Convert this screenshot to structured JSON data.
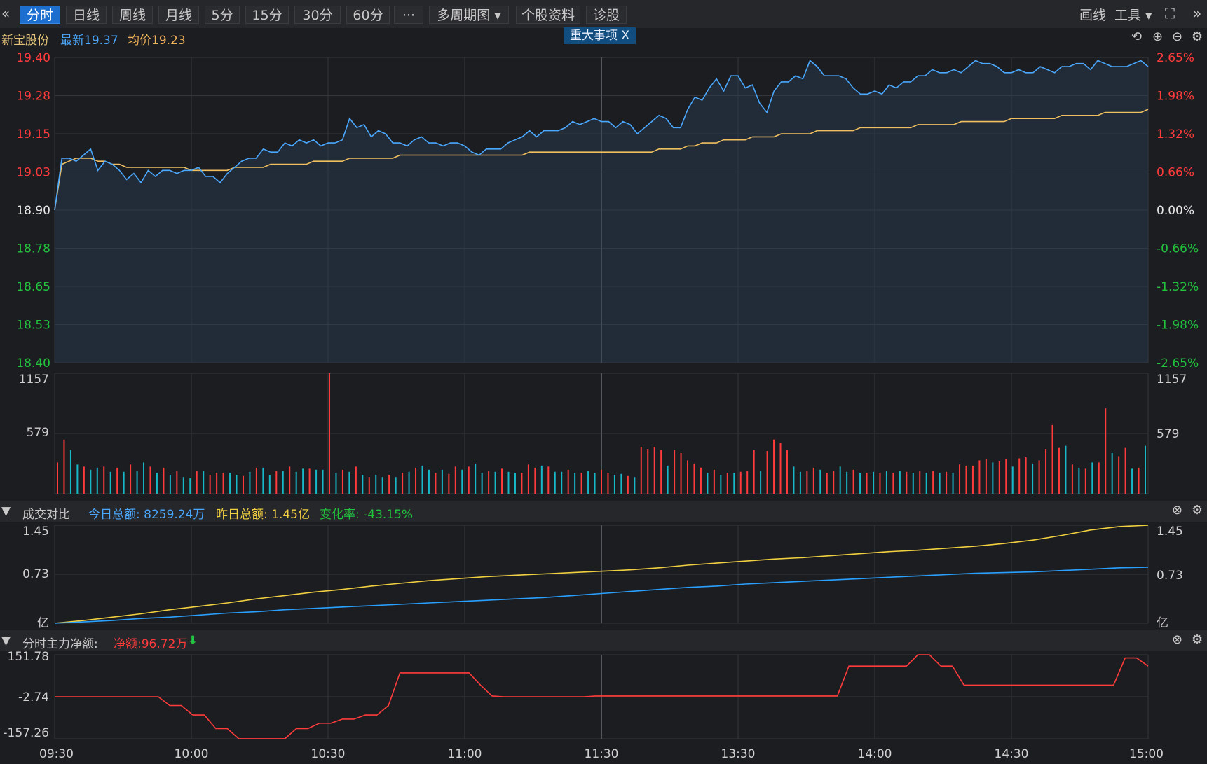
{
  "toolbar": {
    "back_icon": "«",
    "tabs": [
      {
        "label": "分时",
        "active": true
      },
      {
        "label": "日线",
        "active": false
      },
      {
        "label": "周线",
        "active": false
      },
      {
        "label": "月线",
        "active": false
      },
      {
        "label": "5分",
        "active": false
      },
      {
        "label": "15分",
        "active": false
      },
      {
        "label": "30分",
        "active": false
      },
      {
        "label": "60分",
        "active": false
      },
      {
        "label": "···",
        "active": false
      },
      {
        "label": "多周期图 ▾",
        "active": false
      },
      {
        "label": "个股资料",
        "active": false
      },
      {
        "label": "诊股",
        "active": false
      }
    ],
    "draw_label": "画线",
    "tools_label": "工具 ▾",
    "fullscreen_icon": "⛶",
    "forward_icon": "»"
  },
  "info": {
    "stock_name": "新宝股份",
    "latest": "最新19.37",
    "avg": "均价19.23",
    "event_badge": "重大事项  X"
  },
  "colors": {
    "up": "#ff3b3b",
    "down": "#22c43e",
    "price": "#4aa8ff",
    "avg": "#f0c060",
    "bg": "#1c1d21",
    "grid": "#35363b"
  },
  "time_labels": [
    "09:30",
    "10:00",
    "10:30",
    "11:00",
    "11:30",
    "13:30",
    "14:00",
    "14:30",
    "15:00"
  ],
  "chart_data": [
    {
      "type": "line",
      "ylim": [
        18.4,
        19.4
      ],
      "y_left_labels": [
        "19.40",
        "19.28",
        "19.15",
        "19.03",
        "18.90",
        "18.78",
        "18.65",
        "18.53",
        "18.40"
      ],
      "y_right_labels": [
        "2.65%",
        "1.98%",
        "1.32%",
        "0.66%",
        "0.00%",
        "-0.66%",
        "-1.32%",
        "-1.98%",
        "-2.65%"
      ],
      "prev_close": 18.9,
      "series": [
        {
          "values": [
            18.9,
            19.07,
            19.07,
            19.06,
            19.08,
            19.1,
            19.03,
            19.06,
            19.05,
            19.03,
            19.0,
            19.02,
            18.99,
            19.03,
            19.01,
            19.03,
            19.03,
            19.02,
            19.03,
            19.03,
            19.04,
            19.01,
            19.01,
            18.99,
            19.02,
            19.04,
            19.06,
            19.07,
            19.07,
            19.1,
            19.09,
            19.09,
            19.12,
            19.11,
            19.13,
            19.12,
            19.13,
            19.11,
            19.12,
            19.12,
            19.13,
            19.2,
            19.17,
            19.18,
            19.14,
            19.16,
            19.15,
            19.12,
            19.12,
            19.11,
            19.13,
            19.14,
            19.12,
            19.12,
            19.11,
            19.12,
            19.12,
            19.11,
            19.09,
            19.08,
            19.1,
            19.1,
            19.1,
            19.12,
            19.13,
            19.14,
            19.16,
            19.14,
            19.16,
            19.16,
            19.16,
            19.17,
            19.19,
            19.18,
            19.19,
            19.2,
            19.19,
            19.19,
            19.17,
            19.19,
            19.18,
            19.15,
            19.17,
            19.19,
            19.21,
            19.2,
            19.17,
            19.17,
            19.23,
            19.27,
            19.26,
            19.3,
            19.33,
            19.29,
            19.34,
            19.34,
            19.3,
            19.31,
            19.25,
            19.22,
            19.29,
            19.32,
            19.32,
            19.34,
            19.33,
            19.39,
            19.37,
            19.34,
            19.34,
            19.34,
            19.33,
            19.3,
            19.28,
            19.28,
            19.29,
            19.28,
            19.31,
            19.3,
            19.32,
            19.32,
            19.34,
            19.34,
            19.36,
            19.35,
            19.35,
            19.36,
            19.35,
            19.37,
            19.39,
            19.38,
            19.38,
            19.37,
            19.35,
            19.35,
            19.36,
            19.35,
            19.35,
            19.37,
            19.36,
            19.35,
            19.37,
            19.37,
            19.38,
            19.38,
            19.36,
            19.39,
            19.38,
            19.37,
            19.37,
            19.37,
            19.38,
            19.39,
            19.37
          ]
        },
        {
          "values": [
            18.9,
            19.05,
            19.06,
            19.07,
            19.07,
            19.07,
            19.06,
            19.06,
            19.05,
            19.05,
            19.04,
            19.04,
            19.04,
            19.04,
            19.04,
            19.04,
            19.04,
            19.04,
            19.04,
            19.03,
            19.03,
            19.03,
            19.03,
            19.03,
            19.03,
            19.04,
            19.04,
            19.04,
            19.04,
            19.04,
            19.05,
            19.05,
            19.05,
            19.05,
            19.05,
            19.05,
            19.06,
            19.06,
            19.06,
            19.06,
            19.06,
            19.07,
            19.07,
            19.07,
            19.07,
            19.07,
            19.07,
            19.07,
            19.08,
            19.08,
            19.08,
            19.08,
            19.08,
            19.08,
            19.08,
            19.08,
            19.08,
            19.08,
            19.08,
            19.08,
            19.08,
            19.08,
            19.08,
            19.08,
            19.08,
            19.08,
            19.09,
            19.09,
            19.09,
            19.09,
            19.09,
            19.09,
            19.09,
            19.09,
            19.09,
            19.09,
            19.09,
            19.09,
            19.09,
            19.09,
            19.09,
            19.09,
            19.09,
            19.09,
            19.1,
            19.1,
            19.1,
            19.1,
            19.11,
            19.11,
            19.12,
            19.12,
            19.12,
            19.13,
            19.13,
            19.13,
            19.13,
            19.14,
            19.14,
            19.14,
            19.14,
            19.15,
            19.15,
            19.15,
            19.15,
            19.15,
            19.16,
            19.16,
            19.16,
            19.16,
            19.16,
            19.16,
            19.17,
            19.17,
            19.17,
            19.17,
            19.17,
            19.17,
            19.17,
            19.17,
            19.18,
            19.18,
            19.18,
            19.18,
            19.18,
            19.18,
            19.19,
            19.19,
            19.19,
            19.19,
            19.19,
            19.19,
            19.19,
            19.2,
            19.2,
            19.2,
            19.2,
            19.2,
            19.2,
            19.2,
            19.21,
            19.21,
            19.21,
            19.21,
            19.21,
            19.21,
            19.22,
            19.22,
            19.22,
            19.22,
            19.22,
            19.22,
            19.23
          ]
        }
      ]
    },
    {
      "type": "bar",
      "ylim": [
        0,
        1157
      ],
      "y_labels": [
        "1157",
        "579"
      ],
      "series": [
        {
          "values": [
            300,
            520,
            420,
            280,
            260,
            230,
            250,
            260,
            210,
            250,
            210,
            280,
            220,
            300,
            260,
            200,
            250,
            180,
            220,
            160,
            150,
            220,
            220,
            180,
            200,
            200,
            200,
            180,
            170,
            210,
            250,
            250,
            180,
            220,
            220,
            260,
            210,
            240,
            240,
            230,
            230,
            1157,
            200,
            230,
            210,
            260,
            180,
            160,
            180,
            160,
            180,
            160,
            200,
            210,
            250,
            270,
            230,
            200,
            230,
            190,
            260,
            230,
            260,
            290,
            200,
            220,
            210,
            240,
            210,
            200,
            200,
            280,
            250,
            270,
            260,
            210,
            210,
            230,
            200,
            200,
            220,
            200,
            230,
            200,
            180,
            190,
            170,
            160,
            450,
            430,
            450,
            420,
            270,
            420,
            390,
            320,
            290,
            250,
            200,
            230,
            180,
            200,
            200,
            210,
            220,
            420,
            220,
            410,
            520,
            490,
            420,
            260,
            210,
            220,
            250,
            230,
            200,
            220,
            260,
            210,
            230,
            200,
            200,
            210,
            200,
            220,
            200,
            220,
            210,
            200,
            220,
            200,
            220,
            200,
            210,
            200,
            280,
            270,
            270,
            320,
            330,
            300,
            310,
            330,
            260,
            340,
            350,
            290,
            320,
            430,
            660,
            440,
            460,
            280,
            250,
            240,
            300,
            300,
            820,
            390,
            360,
            440,
            240,
            250,
            460
          ]
        }
      ],
      "colors": [
        "up",
        "up",
        "down",
        "down",
        "up",
        "down",
        "down",
        "up",
        "down",
        "up",
        "down",
        "up",
        "down",
        "down",
        "up",
        "down",
        "up",
        "down",
        "up",
        "down",
        "down",
        "up",
        "down",
        "up",
        "up",
        "up",
        "down",
        "down",
        "up",
        "down",
        "up",
        "down",
        "down",
        "up",
        "down",
        "up",
        "down",
        "down",
        "up",
        "down",
        "down",
        "up",
        "down",
        "up",
        "down",
        "up",
        "down",
        "up",
        "down",
        "down",
        "up",
        "down",
        "up",
        "down",
        "up",
        "down",
        "down",
        "up",
        "down",
        "up",
        "up",
        "down",
        "up",
        "down",
        "down",
        "up",
        "down",
        "up",
        "down",
        "down",
        "up",
        "up",
        "up",
        "down",
        "up",
        "down",
        "down",
        "up",
        "down",
        "up",
        "down",
        "down",
        "up",
        "up",
        "down",
        "down",
        "up",
        "down",
        "up",
        "up",
        "up",
        "up",
        "down",
        "up",
        "up",
        "up",
        "up",
        "up",
        "down",
        "up",
        "down",
        "up",
        "down",
        "up",
        "up",
        "up",
        "down",
        "up",
        "up",
        "up",
        "up",
        "down",
        "down",
        "up",
        "up",
        "down",
        "up",
        "up",
        "down",
        "down",
        "up",
        "down",
        "up",
        "down",
        "up",
        "down",
        "up",
        "down",
        "up",
        "down",
        "up",
        "down",
        "up",
        "down",
        "up",
        "down",
        "up",
        "up",
        "up",
        "up",
        "up",
        "down",
        "up",
        "up",
        "down",
        "up",
        "up",
        "down",
        "up",
        "up",
        "up",
        "up",
        "down",
        "up",
        "down",
        "up",
        "down",
        "up",
        "up",
        "down",
        "up",
        "up",
        "down",
        "up",
        "down"
      ]
    },
    {
      "type": "line",
      "title": "成交对比",
      "ylim": [
        0,
        1.45
      ],
      "y_labels": [
        "1.45",
        "0.73",
        "亿"
      ],
      "today_total": "今日总额: 8259.24万",
      "yesterday_total": "昨日总额: 1.45亿",
      "change_rate": "变化率: -43.15%",
      "series": [
        {
          "values": [
            0.0,
            0.04,
            0.09,
            0.14,
            0.2,
            0.25,
            0.3,
            0.36,
            0.41,
            0.46,
            0.5,
            0.55,
            0.59,
            0.63,
            0.66,
            0.69,
            0.71,
            0.73,
            0.75,
            0.77,
            0.79,
            0.82,
            0.86,
            0.89,
            0.92,
            0.95,
            0.97,
            1.0,
            1.03,
            1.06,
            1.08,
            1.11,
            1.14,
            1.18,
            1.23,
            1.3,
            1.38,
            1.43,
            1.45
          ]
        },
        {
          "values": [
            0.0,
            0.02,
            0.04,
            0.07,
            0.09,
            0.12,
            0.15,
            0.17,
            0.2,
            0.22,
            0.24,
            0.26,
            0.28,
            0.3,
            0.32,
            0.34,
            0.36,
            0.38,
            0.41,
            0.44,
            0.47,
            0.5,
            0.53,
            0.55,
            0.58,
            0.6,
            0.62,
            0.64,
            0.66,
            0.68,
            0.7,
            0.72,
            0.74,
            0.75,
            0.76,
            0.78,
            0.8,
            0.82,
            0.83
          ]
        }
      ]
    },
    {
      "type": "line",
      "title": "分时主力净额:",
      "net_value": "净额:96.72万",
      "net_arrow": "⬇",
      "ylim": [
        -157.26,
        151.78
      ],
      "y_labels": [
        "151.78",
        "-2.74",
        "-157.26"
      ],
      "series": [
        {
          "values": [
            -2.74,
            -2.74,
            -2.74,
            -2.74,
            -2.74,
            -2.74,
            -2.74,
            -2.74,
            -2.74,
            -2.74,
            -35,
            -35,
            -70,
            -70,
            -120,
            -120,
            -157,
            -157,
            -157,
            -157,
            -157,
            -120,
            -120,
            -100,
            -100,
            -85,
            -85,
            -70,
            -70,
            -35,
            85,
            85,
            85,
            85,
            85,
            85,
            85,
            40,
            0,
            -2.74,
            -2.74,
            -2.74,
            -2.74,
            -2.74,
            -2.74,
            -2.74,
            -2.74,
            0,
            0,
            0,
            0,
            0,
            0,
            0,
            0,
            0,
            0,
            0,
            0,
            0,
            0,
            0,
            0,
            0,
            0,
            0,
            0,
            0,
            0,
            110,
            110,
            110,
            110,
            110,
            110,
            151.78,
            151.78,
            110,
            110,
            40,
            40,
            40,
            40,
            40,
            40,
            40,
            40,
            40,
            40,
            40,
            40,
            40,
            40,
            140,
            140,
            110
          ]
        }
      ]
    }
  ]
}
